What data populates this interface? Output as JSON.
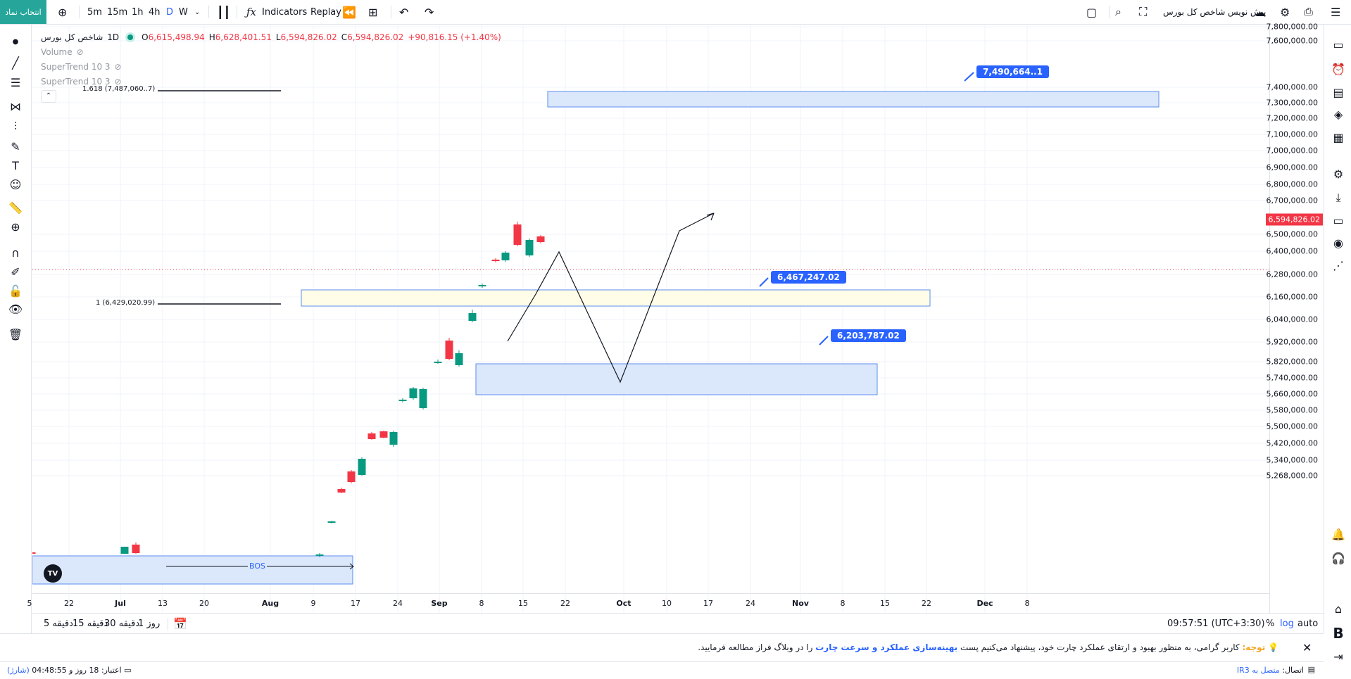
{
  "topbar": {
    "symbol_button": "انتخاب نماد",
    "timeframes": [
      "5m",
      "15m",
      "1h",
      "4h",
      "D",
      "W"
    ],
    "indicators_label": "Indicators",
    "replay_label": "Replay",
    "publish_label": "پیش نویس شاخص کل بورس"
  },
  "legend": {
    "symbol": "شاخص کل بورس",
    "interval": "1D",
    "ohlc": {
      "o": "6,615,498.94",
      "h": "6,628,401.51",
      "l": "6,594,826.02",
      "c": "6,594,826.02",
      "change": "+90,816.15 (+1.40%)"
    },
    "o_label": "O",
    "h_label": "H",
    "l_label": "L",
    "c_label": "C",
    "volume": "Volume",
    "supertrend1": "SuperTrend 10 3",
    "supertrend2": "SuperTrend 10 3"
  },
  "chart": {
    "fib_1618": "1.618 (7,487,060..7)",
    "fib_1": "1 (6,429,020.99)",
    "callout_top": "7,490,664..1",
    "callout_mid": "6,467,247.02",
    "callout_low": "6,203,787.02",
    "bos": "BOS",
    "current_price": "6,594,826.02"
  },
  "price_axis": [
    "7,800,000.00",
    "7,600,000.00",
    "7,400,000.00",
    "7,300,000.00",
    "7,200,000.00",
    "7,100,000.00",
    "7,000,000.00",
    "6,900,000.00",
    "6,800,000.00",
    "6,700,000.00",
    "6,500,000.00",
    "6,400,000.00",
    "6,280,000.00",
    "6,160,000.00",
    "6,040,000.00",
    "5,920,000.00",
    "5,820,000.00",
    "5,740,000.00",
    "5,660,000.00",
    "5,580,000.00",
    "5,500,000.00",
    "5,420,000.00",
    "5,340,000.00",
    "5,268,000.00"
  ],
  "time_axis": [
    "5",
    "22",
    "Jul",
    "13",
    "20",
    "Aug",
    "9",
    "17",
    "24",
    "Sep",
    "8",
    "15",
    "22",
    "Oct",
    "10",
    "17",
    "24",
    "Nov",
    "8",
    "15",
    "22",
    "Dec",
    "8"
  ],
  "bottombar": {
    "ranges": [
      "5 دقیقه",
      "15 دقیقه",
      "30 دقیقه",
      "1 روز"
    ],
    "clock": "09:57:51 (UTC+3:30)",
    "percent": "%",
    "log": "log",
    "auto": "auto"
  },
  "notice": {
    "title": "توجه:",
    "text_before": "کاربر گرامی، به منظور بهبود و ارتقای عملکرد چارت خود، پیشنهاد می‌کنیم پست",
    "link": "بهینه‌سازی عملکرد و سرعت چارت",
    "text_after": "را در وبلاگ فراز مطالعه فرمایید."
  },
  "statusbar": {
    "connection_label": "اتصال:",
    "connection_value": "متصل به IR3",
    "credit_label": "اعتبار:",
    "credit_value": "18 روز و 04:48:55",
    "recharge": "(شارژ)"
  },
  "colors": {
    "up": "#089981",
    "down": "#f23645",
    "accent": "#2962ff",
    "zone_fill": "#dbe7fb",
    "zone_yellow": "#fffde7"
  }
}
